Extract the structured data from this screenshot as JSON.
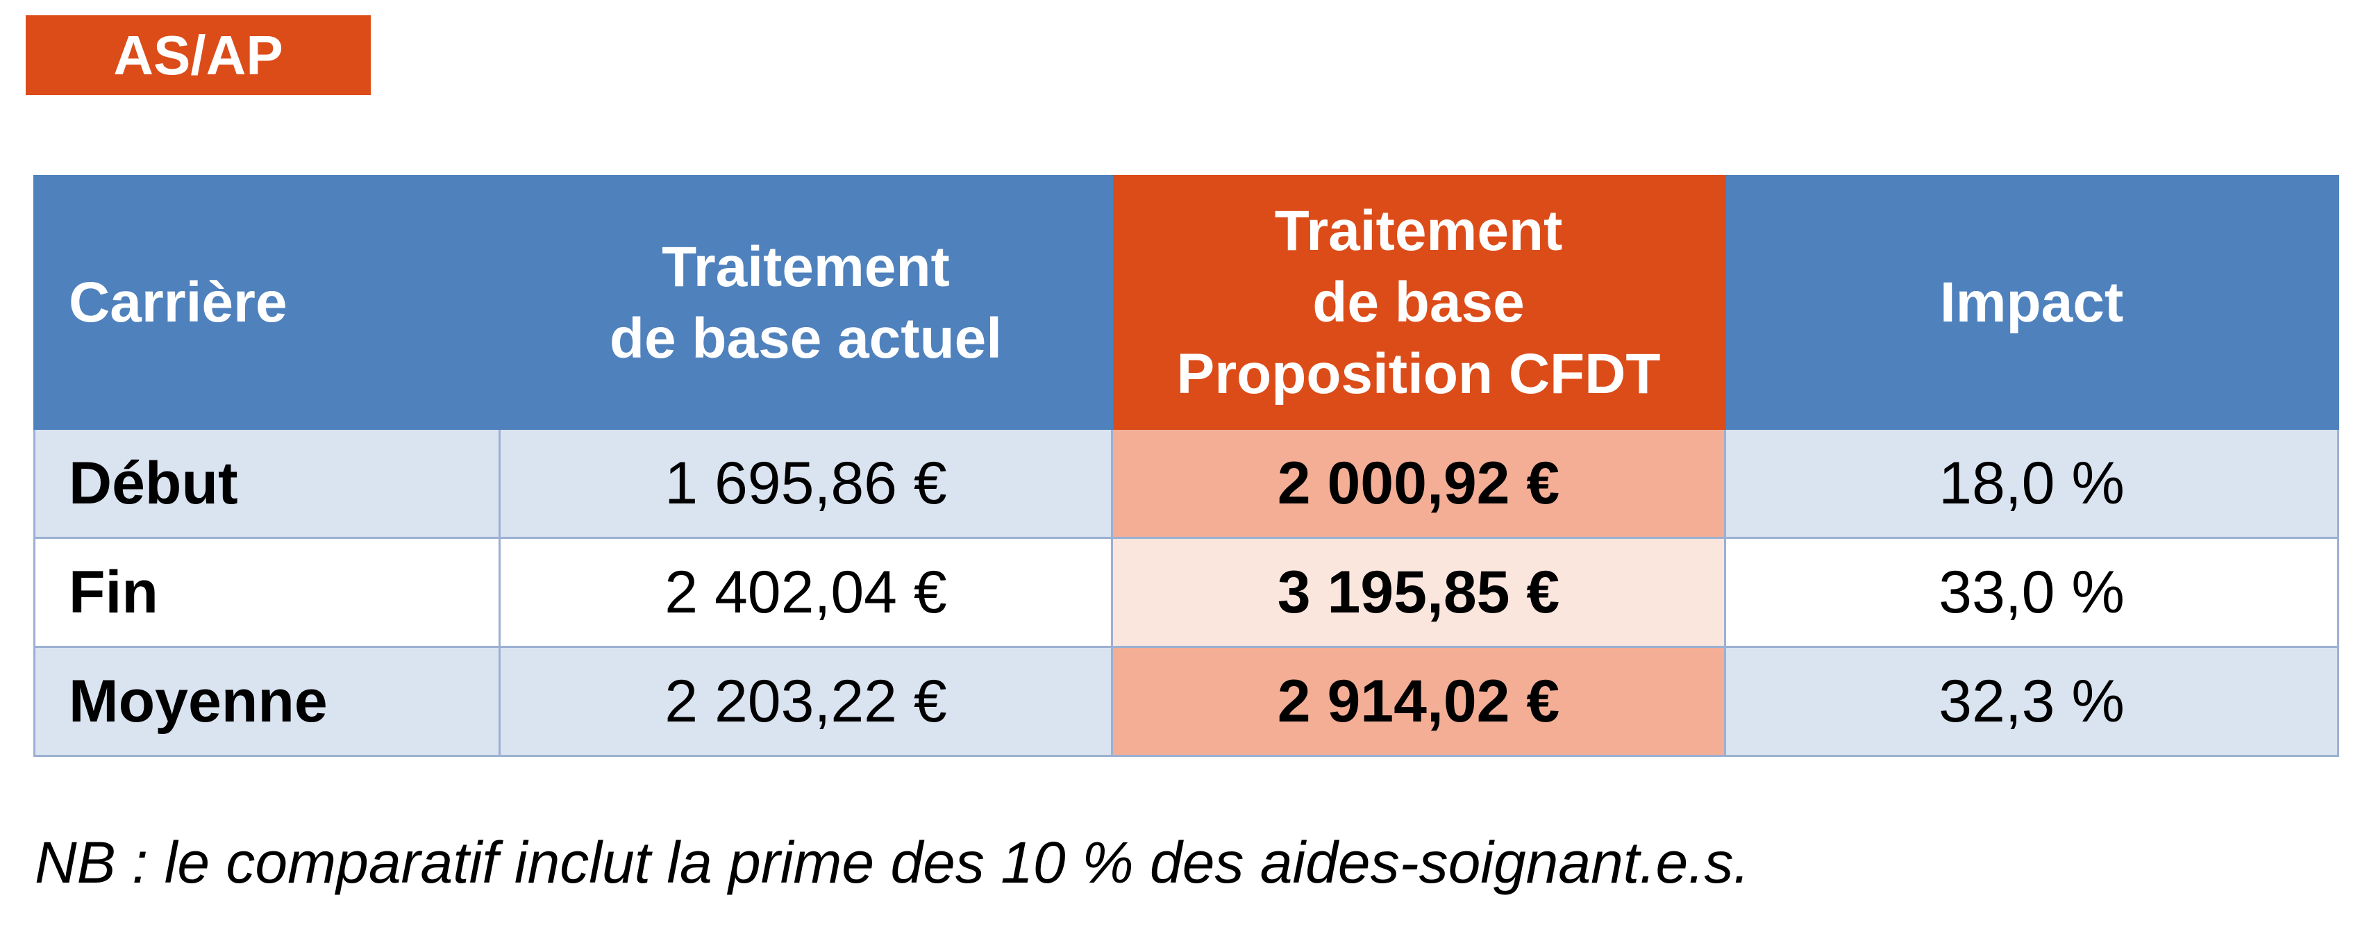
{
  "badge": {
    "label": "AS/AP"
  },
  "table": {
    "headers": {
      "career": "Carrière",
      "current": [
        "Traitement",
        "de base actuel"
      ],
      "proposal": [
        "Traitement",
        "de base",
        "Proposition CFDT"
      ],
      "impact": "Impact"
    },
    "rows": [
      {
        "label": "Début",
        "current": "1 695,86 €",
        "proposal": "2 000,92 €",
        "impact": "18,0 %"
      },
      {
        "label": "Fin",
        "current": "2 402,04 €",
        "proposal": "3 195,85 €",
        "impact": "33,0 %"
      },
      {
        "label": "Moyenne",
        "current": "2 203,22 €",
        "proposal": "2 914,02 €",
        "impact": "32,3 %"
      }
    ]
  },
  "note": "NB : le comparatif inclut la prime des 10 % des aides-soignant.e.s.",
  "colors": {
    "header_blue": "#4f81bd",
    "accent_orange": "#dc4c19",
    "row_shaded_blue": "#dae3f0",
    "proposal_dark": "#f4ae96",
    "proposal_light": "#fbe6de"
  }
}
